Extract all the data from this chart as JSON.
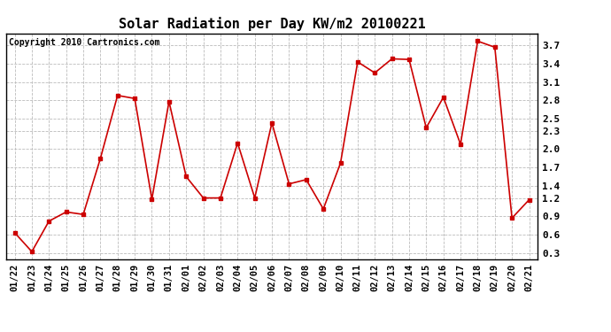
{
  "title": "Solar Radiation per Day KW/m2 20100221",
  "copyright": "Copyright 2010 Cartronics.com",
  "dates": [
    "01/22",
    "01/23",
    "01/24",
    "01/25",
    "01/26",
    "01/27",
    "01/28",
    "01/29",
    "01/30",
    "01/31",
    "02/01",
    "02/02",
    "02/03",
    "02/04",
    "02/05",
    "02/06",
    "02/07",
    "02/08",
    "02/09",
    "02/10",
    "02/11",
    "02/12",
    "02/13",
    "02/14",
    "02/15",
    "02/16",
    "02/17",
    "02/18",
    "02/19",
    "02/20",
    "02/21"
  ],
  "values": [
    0.63,
    0.32,
    0.82,
    0.97,
    0.93,
    1.85,
    2.88,
    2.83,
    1.18,
    2.78,
    1.55,
    1.2,
    1.2,
    2.1,
    1.2,
    2.43,
    1.43,
    1.5,
    1.02,
    1.77,
    3.43,
    3.25,
    3.48,
    3.47,
    2.35,
    2.85,
    2.08,
    3.77,
    3.67,
    0.87,
    1.17
  ],
  "line_color": "#cc0000",
  "marker": "s",
  "marker_size": 3,
  "ylim": [
    0.2,
    3.9
  ],
  "yticks": [
    0.3,
    0.6,
    0.9,
    1.2,
    1.4,
    1.7,
    2.0,
    2.3,
    2.5,
    2.8,
    3.1,
    3.4,
    3.7
  ],
  "background_color": "#ffffff",
  "grid_color": "#bbbbbb",
  "title_fontsize": 11,
  "copyright_fontsize": 7,
  "tick_fontsize": 7.5,
  "ytick_fontsize": 8
}
